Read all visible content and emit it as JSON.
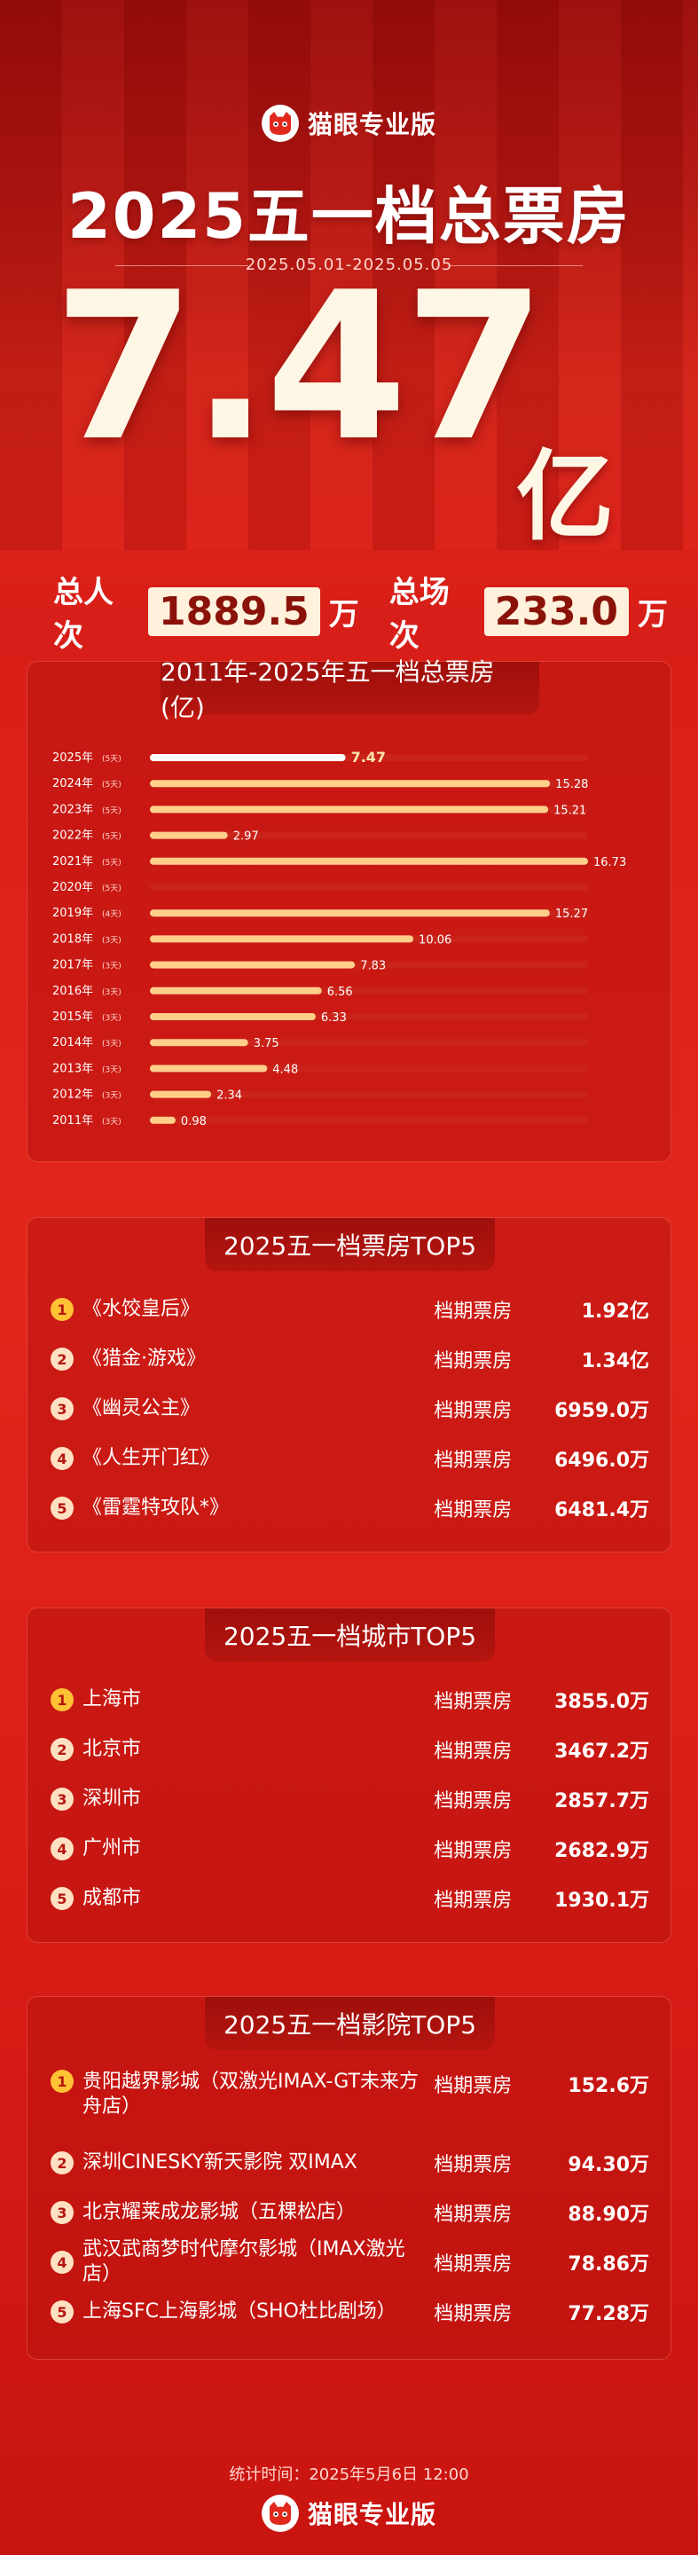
{
  "brand": {
    "name": "猫眼专业版"
  },
  "hero": {
    "title": "2025五一档总票房",
    "date_range": "2025.05.01-2025.05.05",
    "total_value": "7.47",
    "total_unit": "亿",
    "viewers_label": "总人次",
    "viewers_value": "1889.5",
    "viewers_unit": "万",
    "shows_label": "总场次",
    "shows_value": "233.0",
    "shows_unit": "万"
  },
  "chart_data": {
    "type": "bar",
    "orientation": "horizontal",
    "title": "2011年-2025年五一档总票房 (亿)",
    "categories": [
      "2025年",
      "2024年",
      "2023年",
      "2022年",
      "2021年",
      "2020年",
      "2019年",
      "2018年",
      "2017年",
      "2016年",
      "2015年",
      "2014年",
      "2013年",
      "2012年",
      "2011年"
    ],
    "days": [
      "(5天)",
      "(5天)",
      "(5天)",
      "(5天)",
      "(5天)",
      "(5天)",
      "(4天)",
      "(3天)",
      "(3天)",
      "(3天)",
      "(3天)",
      "(3天)",
      "(3天)",
      "(3天)",
      "(3天)"
    ],
    "values": [
      7.47,
      15.28,
      15.21,
      2.97,
      16.73,
      null,
      15.27,
      10.06,
      7.83,
      6.56,
      6.33,
      3.75,
      4.48,
      2.34,
      0.98
    ],
    "value_labels": [
      "7.47",
      "15.28",
      "15.21",
      "2.97",
      "16.73",
      "",
      "15.27",
      "10.06",
      "7.83",
      "6.56",
      "6.33",
      "3.75",
      "4.48",
      "2.34",
      "0.98"
    ],
    "xlim": [
      0,
      16.73
    ],
    "highlight_index": 0,
    "colors": {
      "bar": "#ffcf8a",
      "highlight": "#ffffff",
      "track": "#c9231a"
    }
  },
  "movies": {
    "title": "2025五一档票房TOP5",
    "meta_label": "档期票房",
    "rows": [
      {
        "rank": "1",
        "name": "《水饺皇后》",
        "value": "1.92亿"
      },
      {
        "rank": "2",
        "name": "《猎金·游戏》",
        "value": "1.34亿"
      },
      {
        "rank": "3",
        "name": "《幽灵公主》",
        "value": "6959.0万"
      },
      {
        "rank": "4",
        "name": "《人生开门红》",
        "value": "6496.0万"
      },
      {
        "rank": "5",
        "name": "《雷霆特攻队*》",
        "value": "6481.4万"
      }
    ]
  },
  "cities": {
    "title": "2025五一档城市TOP5",
    "meta_label": "档期票房",
    "rows": [
      {
        "rank": "1",
        "name": "上海市",
        "value": "3855.0万"
      },
      {
        "rank": "2",
        "name": "北京市",
        "value": "3467.2万"
      },
      {
        "rank": "3",
        "name": "深圳市",
        "value": "2857.7万"
      },
      {
        "rank": "4",
        "name": "广州市",
        "value": "2682.9万"
      },
      {
        "rank": "5",
        "name": "成都市",
        "value": "1930.1万"
      }
    ]
  },
  "cinemas": {
    "title": "2025五一档影院TOP5",
    "meta_label": "档期票房",
    "rows": [
      {
        "rank": "1",
        "name": "贵阳越界影城（双激光IMAX-GT未来方舟店）",
        "value": "152.6万"
      },
      {
        "rank": "2",
        "name": "深圳CINESKY新天影院 双IMAX",
        "value": "94.30万"
      },
      {
        "rank": "3",
        "name": "北京耀莱成龙影城（五棵松店）",
        "value": "88.90万"
      },
      {
        "rank": "4",
        "name": "武汉武商梦时代摩尔影城（IMAX激光店）",
        "value": "78.86万"
      },
      {
        "rank": "5",
        "name": "上海SFC上海影城（SHO杜比剧场）",
        "value": "77.28万"
      }
    ]
  },
  "footer": {
    "stat_time": "统计时间：2025年5月6日  12:00"
  }
}
